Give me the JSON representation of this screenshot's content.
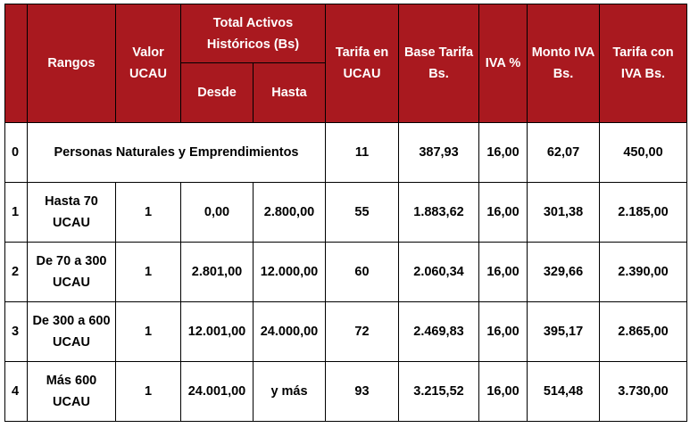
{
  "header": {
    "rangos": "Rangos",
    "valor_ucau": "Valor UCAU",
    "total_activos": "Total Activos Históricos (Bs)",
    "desde": "Desde",
    "hasta": "Hasta",
    "tarifa_ucau": "Tarifa en UCAU",
    "base_tarifa": "Base Tarifa Bs.",
    "iva_pct": "IVA %",
    "monto_iva": "Monto IVA Bs.",
    "tarifa_con_iva": "Tarifa con IVA Bs."
  },
  "rows": [
    {
      "idx": "0",
      "rango": "Personas Naturales y Emprendimientos",
      "tarifa_ucau": "11",
      "base": "387,93",
      "iva": "16,00",
      "monto_iva": "62,07",
      "total": "450,00"
    },
    {
      "idx": "1",
      "rango": "Hasta 70 UCAU",
      "valor": "1",
      "desde": "0,00",
      "hasta": "2.800,00",
      "tarifa_ucau": "55",
      "base": "1.883,62",
      "iva": "16,00",
      "monto_iva": "301,38",
      "total": "2.185,00"
    },
    {
      "idx": "2",
      "rango": "De 70 a 300 UCAU",
      "valor": "1",
      "desde": "2.801,00",
      "hasta": "12.000,00",
      "tarifa_ucau": "60",
      "base": "2.060,34",
      "iva": "16,00",
      "monto_iva": "329,66",
      "total": "2.390,00"
    },
    {
      "idx": "3",
      "rango": "De 300 a 600 UCAU",
      "valor": "1",
      "desde": "12.001,00",
      "hasta": "24.000,00",
      "tarifa_ucau": "72",
      "base": "2.469,83",
      "iva": "16,00",
      "monto_iva": "395,17",
      "total": "2.865,00"
    },
    {
      "idx": "4",
      "rango": "Más 600 UCAU",
      "valor": "1",
      "desde": "24.001,00",
      "hasta": "y más",
      "tarifa_ucau": "93",
      "base": "3.215,52",
      "iva": "16,00",
      "monto_iva": "514,48",
      "total": "3.730,00"
    }
  ]
}
